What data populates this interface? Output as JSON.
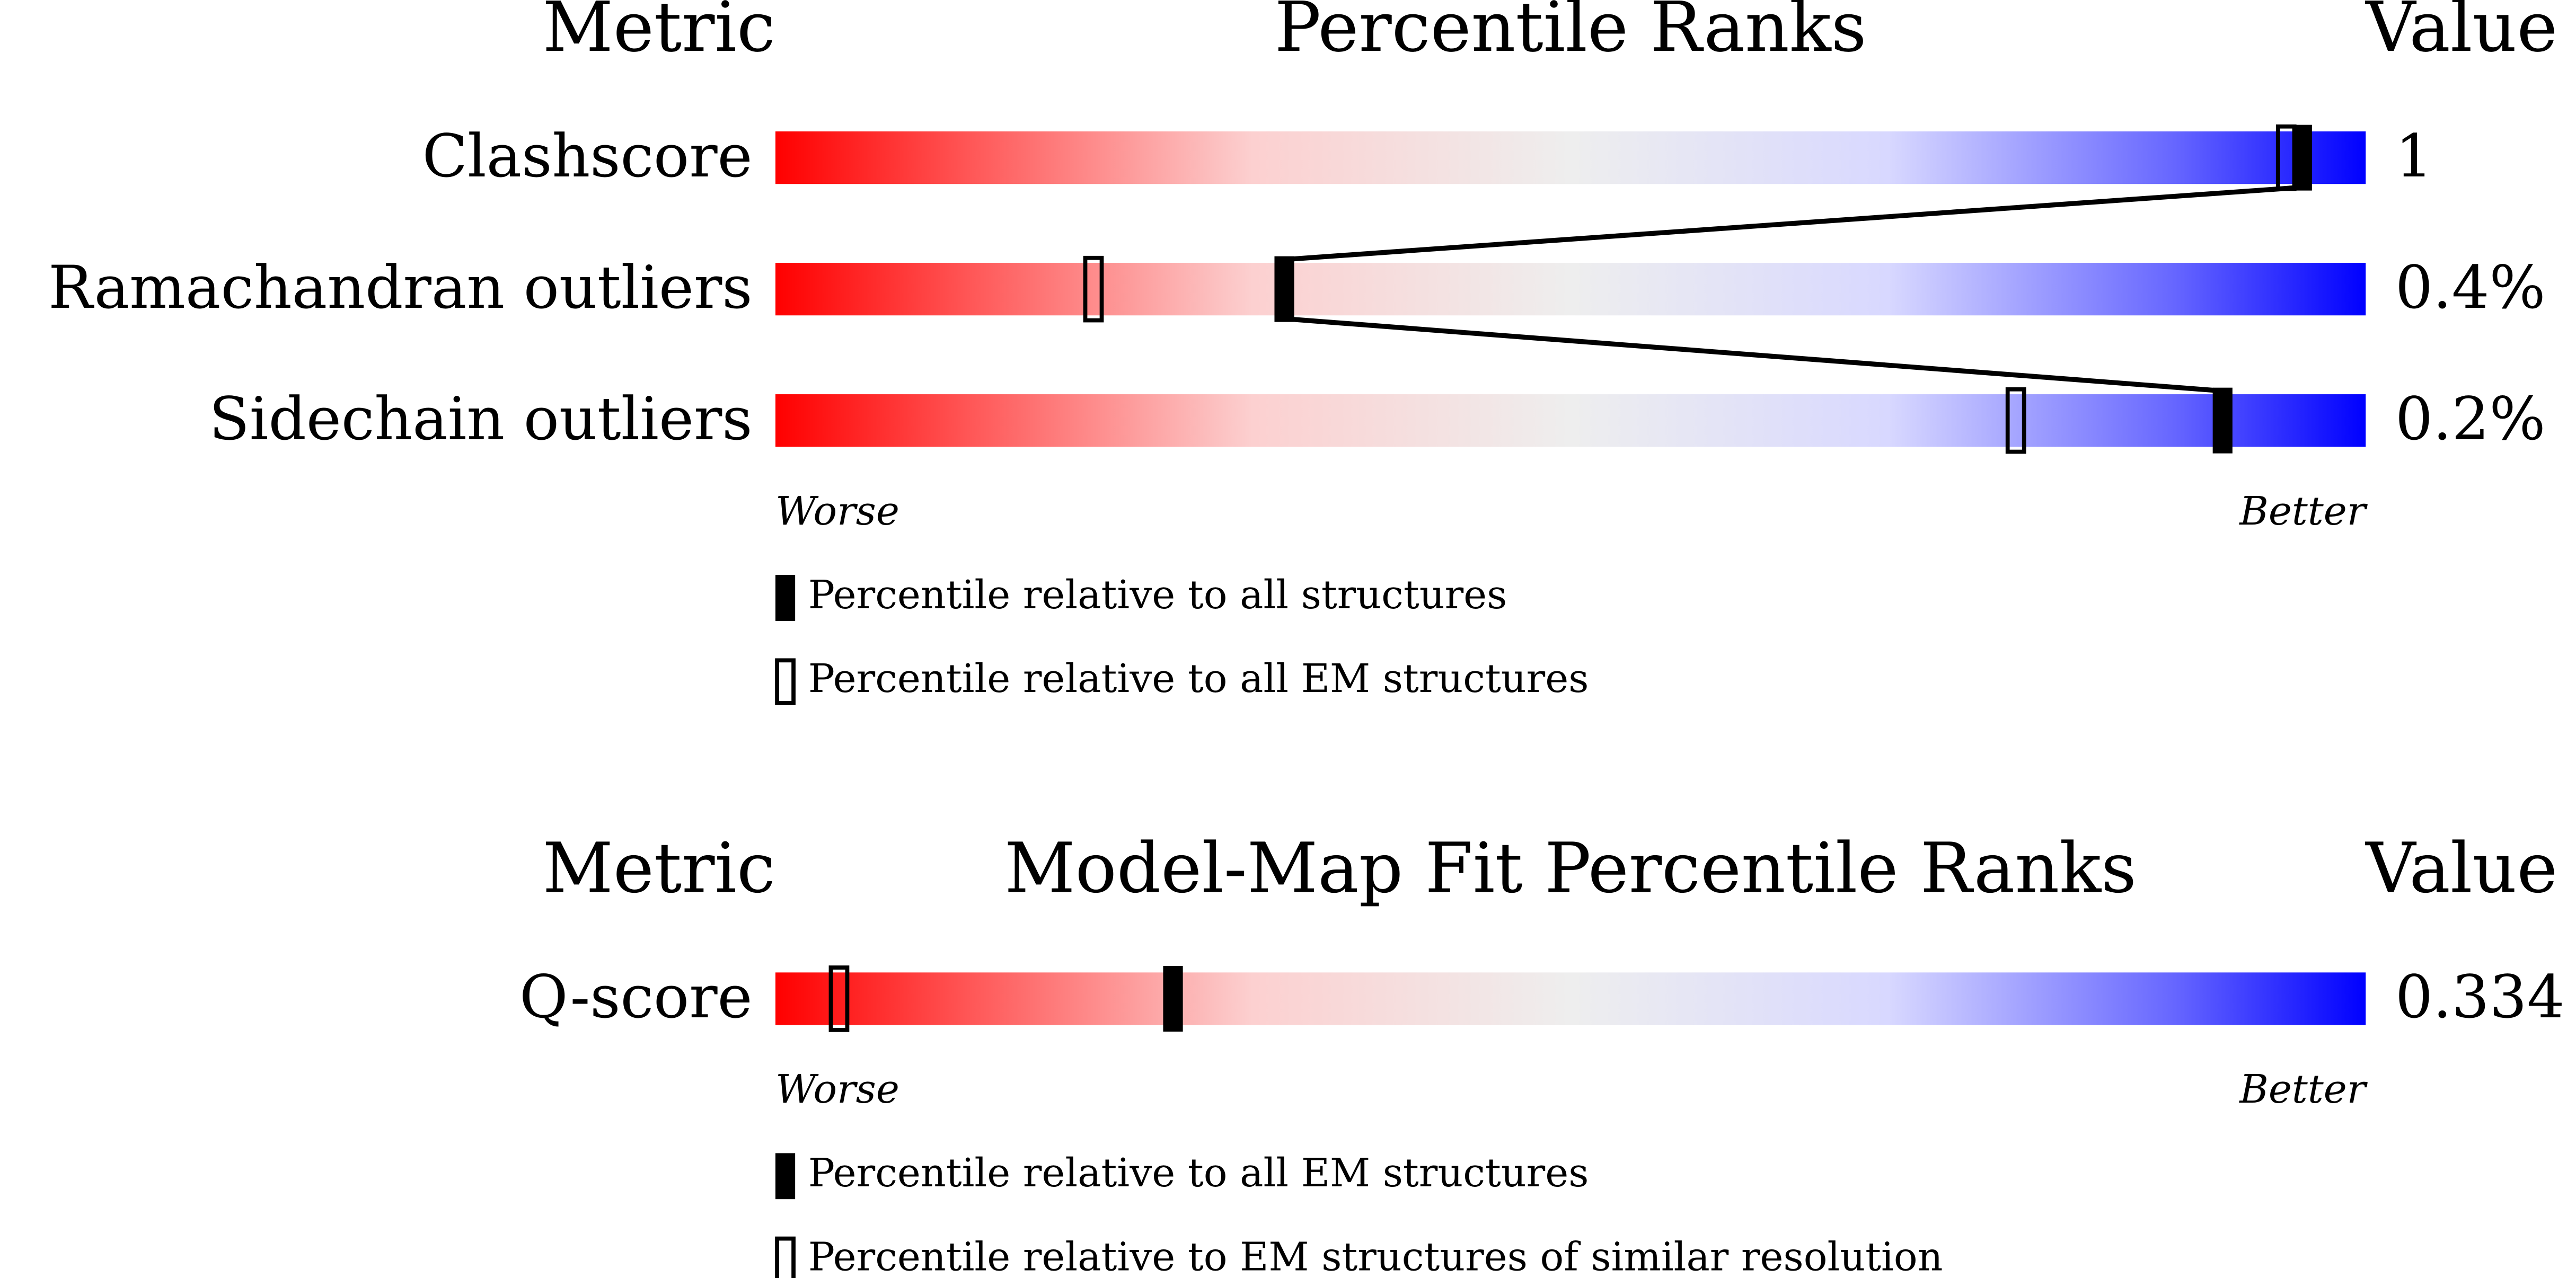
{
  "chart_data": [
    {
      "type": "percentile",
      "metric_header": "Metric",
      "title": "Percentile Ranks",
      "value_header": "Value",
      "categories": [
        "Clashscore",
        "Ramachandran outliers",
        "Sidechain outliers"
      ],
      "metric_values": [
        "1",
        "0.4%",
        "0.2%"
      ],
      "series": [
        {
          "name": "Percentile relative to all structures",
          "style": "filled",
          "color": "#000000",
          "values": [
            96,
            32,
            91
          ]
        },
        {
          "name": "Percentile relative to all EM structures",
          "style": "open",
          "color": "#000000",
          "values": [
            95,
            20,
            78
          ]
        }
      ],
      "xlim": [
        0,
        100
      ],
      "worse_label": "Worse",
      "better_label": "Better"
    },
    {
      "type": "percentile",
      "metric_header": "Metric",
      "title": "Model-Map Fit Percentile Ranks",
      "value_header": "Value",
      "categories": [
        "Q-score"
      ],
      "metric_values": [
        "0.334"
      ],
      "series": [
        {
          "name": "Percentile relative to all EM structures",
          "style": "filled",
          "color": "#000000",
          "values": [
            25
          ]
        },
        {
          "name": "Percentile relative to EM structures of similar resolution",
          "style": "open",
          "color": "#000000",
          "values": [
            4
          ]
        }
      ],
      "xlim": [
        0,
        100
      ],
      "worse_label": "Worse",
      "better_label": "Better"
    }
  ]
}
